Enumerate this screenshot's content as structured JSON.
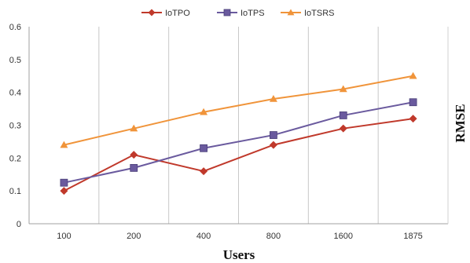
{
  "chart_data": {
    "type": "line",
    "categories": [
      "100",
      "200",
      "400",
      "800",
      "1600",
      "1875"
    ],
    "series": [
      {
        "name": "IoTPO",
        "color": "#c0392b",
        "marker": "diamond",
        "values": [
          0.1,
          0.21,
          0.16,
          0.24,
          0.29,
          0.32
        ]
      },
      {
        "name": "IoTPS",
        "color": "#6a5a9e",
        "marker": "square",
        "values": [
          0.125,
          0.17,
          0.23,
          0.27,
          0.33,
          0.37
        ]
      },
      {
        "name": "IoTSRS",
        "color": "#f0943a",
        "marker": "triangle",
        "values": [
          0.24,
          0.29,
          0.34,
          0.38,
          0.41,
          0.45
        ]
      }
    ],
    "xlabel": "Users",
    "ylabel": "RMSE",
    "ylim": [
      0,
      0.6
    ],
    "yticks": [
      "0",
      "0.1",
      "0.2",
      "0.3",
      "0.4",
      "0.5",
      "0.6"
    ],
    "legend_position": "top-center",
    "grid": "vertical"
  }
}
